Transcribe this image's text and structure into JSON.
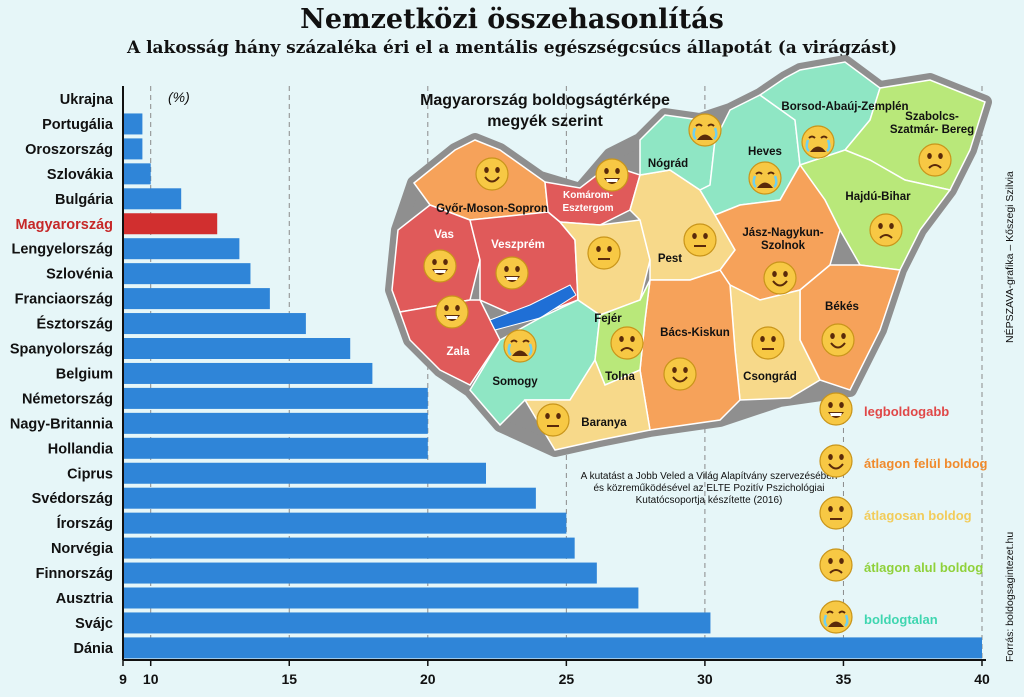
{
  "title": "Nemzetközi összehasonlítás",
  "subtitle": "A lakosság hány százaléka éri el a mentális egészségcsúcs állapotát (a virágzást)",
  "chart_data": {
    "type": "bar",
    "orientation": "horizontal",
    "unit_label": "(%)",
    "categories": [
      "Ukrajna",
      "Portugália",
      "Oroszország",
      "Szlovákia",
      "Bulgária",
      "Magyarország",
      "Lengyelország",
      "Szlovénia",
      "Franciaország",
      "Észtország",
      "Spanyolország",
      "Belgium",
      "Németország",
      "Nagy-Britannia",
      "Hollandia",
      "Ciprus",
      "Svédország",
      "Írország",
      "Norvégia",
      "Finnország",
      "Ausztria",
      "Svájc",
      "Dánia"
    ],
    "values": [
      9,
      9.7,
      9.7,
      10,
      11.1,
      12.4,
      13.2,
      13.6,
      14.3,
      15.6,
      17.2,
      18,
      20,
      20,
      20,
      22.1,
      23.9,
      25,
      25.3,
      26.1,
      27.6,
      30.2,
      40
    ],
    "highlight": "Magyarország",
    "xlim": [
      9,
      40
    ],
    "xticks": [
      9,
      10,
      15,
      20,
      25,
      30,
      35,
      40
    ],
    "bar_color": "#2f85d8",
    "highlight_color": "#d12f2f",
    "highlight_label_color": "#c62828",
    "grid": "dashed vertical"
  },
  "map": {
    "title_line1": "Magyarország boldogságtérképe",
    "title_line2": "megyék szerint",
    "counties": [
      {
        "name": "Győr-Moson-Sopron",
        "category": "above",
        "color": "#f6a25a"
      },
      {
        "name": "Komárom-\nEsztergom",
        "category": "best",
        "color": "#e05a5a"
      },
      {
        "name": "Vas",
        "category": "best",
        "color": "#e05a5a"
      },
      {
        "name": "Veszprém",
        "category": "best",
        "color": "#e05a5a"
      },
      {
        "name": "Zala",
        "category": "best",
        "color": "#e05a5a"
      },
      {
        "name": "Fejér",
        "category": "average",
        "color": "#f7d98a"
      },
      {
        "name": "Pest",
        "category": "average",
        "color": "#f7d98a"
      },
      {
        "name": "Nógrád",
        "category": "unhappy",
        "color": "#8fe6c4"
      },
      {
        "name": "Heves",
        "category": "unhappy",
        "color": "#8fe6c4"
      },
      {
        "name": "Borsod-Abaúj-Zemplén",
        "category": "unhappy",
        "color": "#8fe6c4"
      },
      {
        "name": "Szabolcs-\nSzatmár- Bereg",
        "category": "below",
        "color": "#b9e87a"
      },
      {
        "name": "Hajdú-Bihar",
        "category": "below",
        "color": "#b9e87a"
      },
      {
        "name": "Jász-Nagykun-\nSzolnok",
        "category": "above",
        "color": "#f6a25a"
      },
      {
        "name": "Békés",
        "category": "above",
        "color": "#f6a25a"
      },
      {
        "name": "Csongrád",
        "category": "average",
        "color": "#f7d98a"
      },
      {
        "name": "Bács-Kiskun",
        "category": "above",
        "color": "#f6a25a"
      },
      {
        "name": "Tolna",
        "category": "below",
        "color": "#b9e87a"
      },
      {
        "name": "Somogy",
        "category": "unhappy",
        "color": "#8fe6c4"
      },
      {
        "name": "Baranya",
        "category": "average",
        "color": "#f7d98a"
      }
    ]
  },
  "legend": [
    {
      "category": "best",
      "label": "legboldogabb",
      "color": "#e04848"
    },
    {
      "category": "above",
      "label": "átlagon felül boldog",
      "color": "#f08a2c"
    },
    {
      "category": "average",
      "label": "átlagosan boldog",
      "color": "#f2cc5a"
    },
    {
      "category": "below",
      "label": "átlagon alul boldog",
      "color": "#8fd13a"
    },
    {
      "category": "unhappy",
      "label": "boldogtalan",
      "color": "#3fd6b0"
    }
  ],
  "research_note": "A kutatást a Jobb Veled a Világ Alapítvány szervezésében és közreműködésével az ELTE Pozitív Pszichológiai Kutatócsoportja készítette (2016)",
  "credit": "NÉPSZAVA-grafika – Kőszegi Szilvia",
  "source": "Forrás: boldogsagintezet.hu"
}
